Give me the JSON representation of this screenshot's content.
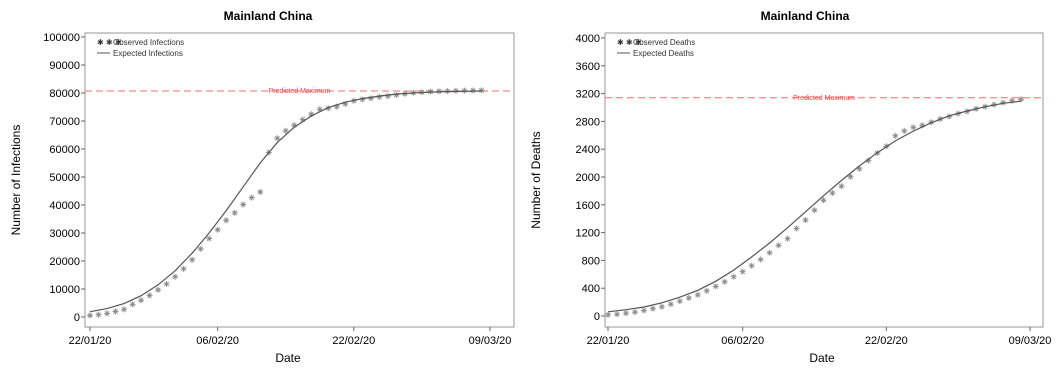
{
  "chart_data": [
    {
      "type": "scatter",
      "title": "Mainland China",
      "xlabel": "Date",
      "ylabel": "Number of Infections",
      "x_ticks": [
        "22/01/20",
        "06/02/20",
        "22/02/20",
        "09/03/20"
      ],
      "x_tick_days": [
        0,
        15,
        31,
        47
      ],
      "x_range_days": [
        0,
        47
      ],
      "ylim": [
        0,
        100000
      ],
      "y_ticks": [
        "0",
        "10000",
        "20000",
        "30000",
        "40000",
        "50000",
        "60000",
        "70000",
        "80000",
        "90000",
        "100000"
      ],
      "y_tick_values": [
        0,
        10000,
        20000,
        30000,
        40000,
        50000,
        60000,
        70000,
        80000,
        90000,
        100000
      ],
      "predicted_maximum": {
        "value": 80700,
        "label": "Predicted Maximum",
        "color": "#ff6b6b"
      },
      "legend": {
        "position": "top-left",
        "entries": [
          "Observed Infections",
          "Expected Infections"
        ]
      },
      "series": [
        {
          "name": "Observed Infections",
          "kind": "markers",
          "days": [
            0,
            1,
            2,
            3,
            4,
            5,
            6,
            7,
            8,
            9,
            10,
            11,
            12,
            13,
            14,
            15,
            16,
            17,
            18,
            19,
            20,
            21,
            22,
            23,
            24,
            25,
            26,
            27,
            28,
            29,
            30,
            31,
            32,
            33,
            34,
            35,
            36,
            37,
            38,
            39,
            40,
            41,
            42,
            43,
            44,
            45,
            46
          ],
          "values": [
            571,
            830,
            1287,
            1975,
            2744,
            4515,
            5974,
            7711,
            9692,
            11791,
            14380,
            17205,
            20438,
            24324,
            28018,
            31161,
            34546,
            37198,
            40171,
            42638,
            44653,
            58761,
            63851,
            66492,
            68500,
            70548,
            72436,
            74185,
            74576,
            75077,
            76100,
            77200,
            77700,
            78100,
            78600,
            78900,
            79300,
            79700,
            80100,
            80300,
            80500,
            80600,
            80700,
            80800,
            80850,
            80900,
            80950
          ]
        },
        {
          "name": "Expected Infections",
          "kind": "line",
          "days": [
            0,
            2,
            4,
            6,
            8,
            10,
            12,
            14,
            16,
            18,
            20,
            22,
            24,
            26,
            28,
            30,
            32,
            34,
            36,
            38,
            40,
            42,
            44,
            46
          ],
          "values": [
            1900,
            3000,
            4800,
            7600,
            11500,
            16500,
            22800,
            30000,
            38000,
            46500,
            55000,
            62300,
            67800,
            71800,
            74800,
            76700,
            78000,
            78900,
            79600,
            80000,
            80300,
            80500,
            80600,
            80700
          ]
        }
      ]
    },
    {
      "type": "scatter",
      "title": "Mainland China",
      "xlabel": "Date",
      "ylabel": "Number of Deaths",
      "x_ticks": [
        "22/01/20",
        "06/02/20",
        "22/02/20",
        "09/03/20"
      ],
      "x_tick_days": [
        0,
        15,
        31,
        47
      ],
      "x_range_days": [
        0,
        47
      ],
      "ylim": [
        0,
        4000
      ],
      "y_ticks": [
        "0",
        "400",
        "800",
        "1200",
        "1600",
        "2000",
        "2400",
        "2800",
        "3200",
        "3600",
        "4000"
      ],
      "y_tick_values": [
        0,
        400,
        800,
        1200,
        1600,
        2000,
        2400,
        2800,
        3200,
        3600,
        4000
      ],
      "predicted_maximum": {
        "value": 3140,
        "label": "Predicted Maximum",
        "color": "#ff6b6b"
      },
      "legend": {
        "position": "top-left",
        "entries": [
          "Observed Deaths",
          "Expected Deaths"
        ]
      },
      "series": [
        {
          "name": "Observed Deaths",
          "kind": "markers",
          "days": [
            0,
            1,
            2,
            3,
            4,
            5,
            6,
            7,
            8,
            9,
            10,
            11,
            12,
            13,
            14,
            15,
            16,
            17,
            18,
            19,
            20,
            21,
            22,
            23,
            24,
            25,
            26,
            27,
            28,
            29,
            30,
            31,
            32,
            33,
            34,
            35,
            36,
            37,
            38,
            39,
            40,
            41,
            42,
            43,
            44,
            45,
            46
          ],
          "values": [
            17,
            25,
            41,
            56,
            80,
            106,
            132,
            170,
            213,
            259,
            304,
            362,
            426,
            492,
            565,
            638,
            724,
            813,
            910,
            1016,
            1113,
            1259,
            1380,
            1523,
            1665,
            1770,
            1868,
            2004,
            2118,
            2236,
            2345,
            2442,
            2592,
            2663,
            2715,
            2744,
            2788,
            2835,
            2870,
            2912,
            2943,
            2981,
            3012,
            3042,
            3070,
            3097,
            3119
          ]
        },
        {
          "name": "Expected Deaths",
          "kind": "line",
          "days": [
            0,
            2,
            4,
            6,
            8,
            10,
            12,
            14,
            16,
            18,
            20,
            22,
            24,
            26,
            28,
            30,
            32,
            34,
            36,
            38,
            40,
            42,
            44,
            46
          ],
          "values": [
            60,
            90,
            130,
            190,
            270,
            370,
            500,
            660,
            850,
            1050,
            1270,
            1500,
            1730,
            1950,
            2160,
            2350,
            2520,
            2660,
            2780,
            2880,
            2950,
            3010,
            3060,
            3090
          ]
        }
      ]
    }
  ]
}
